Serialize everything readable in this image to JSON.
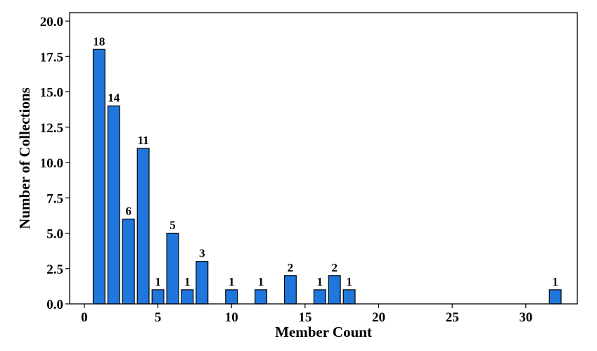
{
  "chart_data": {
    "type": "bar",
    "title": "",
    "xlabel": "Member Count",
    "ylabel": "Number of Collections",
    "xlim": [
      -1,
      33.5
    ],
    "ylim": [
      0,
      20.6
    ],
    "xticks": [
      0,
      5,
      10,
      15,
      20,
      25,
      30
    ],
    "xtick_labels": [
      "0",
      "5",
      "10",
      "15",
      "20",
      "25",
      "30"
    ],
    "yticks": [
      0,
      2.5,
      5,
      7.5,
      10,
      12.5,
      15,
      17.5,
      20
    ],
    "ytick_labels": [
      "0.0",
      "2.5",
      "5.0",
      "7.5",
      "10.0",
      "12.5",
      "15.0",
      "17.5",
      "20.0"
    ],
    "x": [
      1,
      2,
      3,
      4,
      5,
      6,
      7,
      8,
      10,
      12,
      14,
      16,
      17,
      18,
      32
    ],
    "values": [
      18,
      14,
      6,
      11,
      1,
      5,
      1,
      3,
      1,
      1,
      2,
      1,
      2,
      1,
      1
    ],
    "bar_color": "#1f77dd",
    "grid": false,
    "data_labels": true
  }
}
